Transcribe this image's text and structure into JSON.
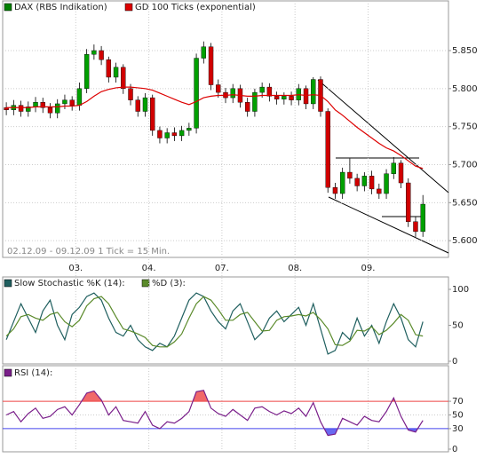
{
  "chart_data": [
    {
      "type": "candlestick",
      "panel": "main",
      "note_text": "02.12.09 - 09.12.09  1 Tick = 15 Min.",
      "xlim": [
        0,
        61
      ],
      "xticks": [
        {
          "value": 10,
          "label": "03."
        },
        {
          "value": 20,
          "label": "04."
        },
        {
          "value": 30,
          "label": "07."
        },
        {
          "value": 40,
          "label": "08."
        },
        {
          "value": 50,
          "label": "09."
        }
      ],
      "ylim": [
        5578,
        5899
      ],
      "yticks": [
        {
          "value": 5600,
          "label": "5.600"
        },
        {
          "value": 5650,
          "label": "5.650"
        },
        {
          "value": 5700,
          "label": "5.700"
        },
        {
          "value": 5750,
          "label": "5.750"
        },
        {
          "value": 5800,
          "label": "5.800"
        },
        {
          "value": 5850,
          "label": "5.850"
        }
      ],
      "grid": true,
      "candles": {
        "name": "DAX (RBS Indikation)",
        "color": "#008000",
        "up_color": "#00a000",
        "down_color": "#d00000",
        "open": [
          5775,
          5772,
          5778,
          5770,
          5776,
          5782,
          5775,
          5768,
          5780,
          5785,
          5778,
          5800,
          5845,
          5850,
          5838,
          5815,
          5828,
          5800,
          5785,
          5770,
          5788,
          5745,
          5735,
          5742,
          5738,
          5745,
          5748,
          5840,
          5855,
          5805,
          5795,
          5788,
          5800,
          5782,
          5770,
          5795,
          5802,
          5790,
          5786,
          5790,
          5785,
          5800,
          5780,
          5812,
          5770,
          5670,
          5662,
          5690,
          5682,
          5672,
          5685,
          5668,
          5662,
          5688,
          5702,
          5676,
          5625,
          5612
        ],
        "high": [
          5782,
          5785,
          5784,
          5783,
          5789,
          5788,
          5781,
          5786,
          5792,
          5790,
          5808,
          5852,
          5858,
          5856,
          5842,
          5834,
          5832,
          5806,
          5790,
          5794,
          5792,
          5750,
          5748,
          5749,
          5751,
          5755,
          5846,
          5862,
          5860,
          5812,
          5801,
          5806,
          5805,
          5788,
          5800,
          5808,
          5807,
          5796,
          5795,
          5796,
          5806,
          5804,
          5815,
          5816,
          5774,
          5676,
          5696,
          5708,
          5688,
          5690,
          5692,
          5675,
          5694,
          5710,
          5706,
          5682,
          5632,
          5660
        ],
        "low": [
          5765,
          5765,
          5763,
          5763,
          5769,
          5768,
          5761,
          5761,
          5773,
          5771,
          5771,
          5794,
          5838,
          5831,
          5808,
          5808,
          5793,
          5778,
          5763,
          5763,
          5738,
          5728,
          5728,
          5731,
          5731,
          5738,
          5741,
          5833,
          5798,
          5788,
          5781,
          5781,
          5775,
          5763,
          5763,
          5788,
          5783,
          5779,
          5779,
          5778,
          5778,
          5773,
          5773,
          5763,
          5663,
          5655,
          5655,
          5675,
          5665,
          5665,
          5661,
          5655,
          5655,
          5681,
          5669,
          5618,
          5605,
          5605
        ],
        "close": [
          5772,
          5778,
          5770,
          5776,
          5782,
          5775,
          5768,
          5780,
          5785,
          5778,
          5800,
          5845,
          5850,
          5838,
          5815,
          5828,
          5800,
          5785,
          5770,
          5788,
          5745,
          5735,
          5742,
          5738,
          5745,
          5748,
          5840,
          5855,
          5805,
          5795,
          5788,
          5800,
          5782,
          5770,
          5795,
          5802,
          5790,
          5786,
          5790,
          5785,
          5800,
          5780,
          5812,
          5770,
          5670,
          5662,
          5690,
          5682,
          5672,
          5685,
          5668,
          5662,
          5688,
          5702,
          5676,
          5625,
          5612,
          5648
        ]
      },
      "series": [
        {
          "name": "GD 100 Ticks (exponential)",
          "color": "#dd0000",
          "values": [
            5775,
            5775,
            5775,
            5775,
            5776,
            5776,
            5776,
            5776,
            5777,
            5777,
            5778,
            5783,
            5790,
            5796,
            5799,
            5801,
            5802,
            5802,
            5801,
            5800,
            5798,
            5794,
            5790,
            5786,
            5782,
            5779,
            5783,
            5788,
            5790,
            5791,
            5791,
            5792,
            5791,
            5790,
            5790,
            5791,
            5791,
            5791,
            5791,
            5791,
            5792,
            5791,
            5792,
            5791,
            5783,
            5772,
            5765,
            5757,
            5749,
            5742,
            5735,
            5728,
            5722,
            5718,
            5712,
            5705,
            5698,
            5695
          ]
        }
      ]
    },
    {
      "type": "line",
      "panel": "stochastic",
      "xlim": [
        0,
        61
      ],
      "ylim": [
        0,
        100
      ],
      "yticks": [
        0,
        50,
        100
      ],
      "series": [
        {
          "name": "Slow Stochastic %K (14):",
          "color": "#1f5f5f",
          "values": [
            30,
            55,
            80,
            60,
            40,
            70,
            85,
            50,
            30,
            65,
            75,
            90,
            95,
            85,
            60,
            40,
            35,
            50,
            30,
            20,
            15,
            25,
            20,
            35,
            60,
            85,
            95,
            90,
            70,
            55,
            45,
            70,
            80,
            55,
            30,
            40,
            60,
            70,
            55,
            65,
            75,
            50,
            80,
            45,
            10,
            15,
            40,
            30,
            60,
            35,
            50,
            25,
            55,
            80,
            60,
            30,
            20,
            55
          ]
        },
        {
          "name": "%D (3):",
          "color": "#5a8a2a",
          "values": [
            35,
            45,
            62,
            65,
            60,
            57,
            65,
            68,
            55,
            48,
            57,
            77,
            87,
            90,
            80,
            62,
            45,
            42,
            38,
            33,
            22,
            20,
            20,
            27,
            38,
            60,
            80,
            90,
            85,
            72,
            57,
            57,
            65,
            68,
            55,
            42,
            43,
            57,
            62,
            63,
            65,
            63,
            68,
            58,
            45,
            23,
            22,
            28,
            43,
            42,
            48,
            37,
            43,
            53,
            65,
            57,
            37,
            35
          ]
        }
      ]
    },
    {
      "type": "line",
      "panel": "rsi",
      "xlim": [
        0,
        61
      ],
      "ylim": [
        0,
        100
      ],
      "yticks": [
        0,
        30,
        50,
        70
      ],
      "upper": 70,
      "lower": 30,
      "upper_color": "#ee4444",
      "lower_color": "#4444ee",
      "series": [
        {
          "name": "RSI (14):",
          "color": "#7a1f8a",
          "values": [
            50,
            55,
            40,
            52,
            60,
            45,
            48,
            58,
            62,
            50,
            65,
            82,
            85,
            72,
            50,
            62,
            42,
            40,
            38,
            55,
            35,
            30,
            40,
            38,
            45,
            55,
            84,
            86,
            60,
            52,
            48,
            58,
            50,
            42,
            60,
            62,
            55,
            50,
            56,
            52,
            60,
            48,
            68,
            40,
            20,
            22,
            45,
            40,
            35,
            48,
            42,
            40,
            55,
            75,
            48,
            28,
            25,
            42
          ]
        }
      ]
    }
  ]
}
